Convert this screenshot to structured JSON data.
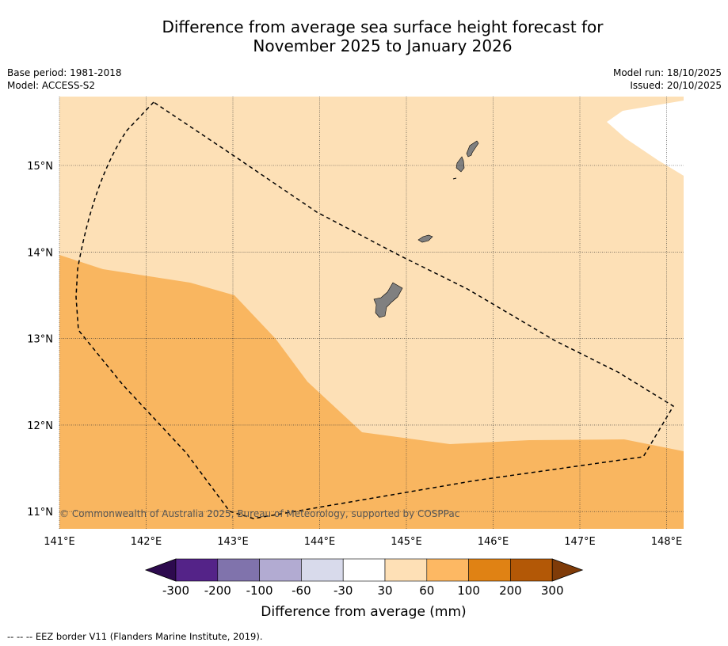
{
  "header": {
    "title_line1": "Difference from average sea surface height forecast for",
    "title_line2": "November 2025 to January 2026"
  },
  "meta_left": {
    "base_period": "Base period: 1981-2018",
    "model": "Model: ACCESS-S2"
  },
  "meta_right": {
    "model_run": "Model run: 18/10/2025",
    "issued": "Issued: 20/10/2025"
  },
  "map": {
    "lon_range": [
      141.0,
      148.2
    ],
    "lat_range": [
      10.8,
      15.8
    ],
    "lon_ticks": [
      141,
      142,
      143,
      144,
      145,
      146,
      147,
      148
    ],
    "lat_ticks": [
      11,
      12,
      13,
      14,
      15
    ],
    "lon_labels": [
      "141°E",
      "142°E",
      "143°E",
      "144°E",
      "145°E",
      "146°E",
      "147°E",
      "148°E"
    ],
    "lat_labels": [
      "11°N",
      "12°N",
      "13°N",
      "14°N",
      "15°N"
    ],
    "copyright": "© Commonwealth of Australia 2025, Bureau of Meteorology, supported by COSPPac",
    "colors": {
      "band_30_60": "#fde0b6",
      "band_60_100": "#f9b660",
      "band_neutral": "#ffffff",
      "land": "#808080",
      "eez": "#000000"
    }
  },
  "legend": {
    "label": "Difference from average (mm)",
    "tick_labels": [
      "-300",
      "-200",
      "-100",
      "-60",
      "-30",
      "30",
      "60",
      "100",
      "200",
      "300"
    ],
    "colors": [
      "#2d0a4e",
      "#542388",
      "#8073ac",
      "#b2abd2",
      "#d8daeb",
      "#ffffff",
      "#fee0b6",
      "#fdb863",
      "#e08214",
      "#b35806",
      "#7f3b08"
    ]
  },
  "footnote": "--  --  -- EEZ border V11 (Flanders Marine Institute, 2019)."
}
